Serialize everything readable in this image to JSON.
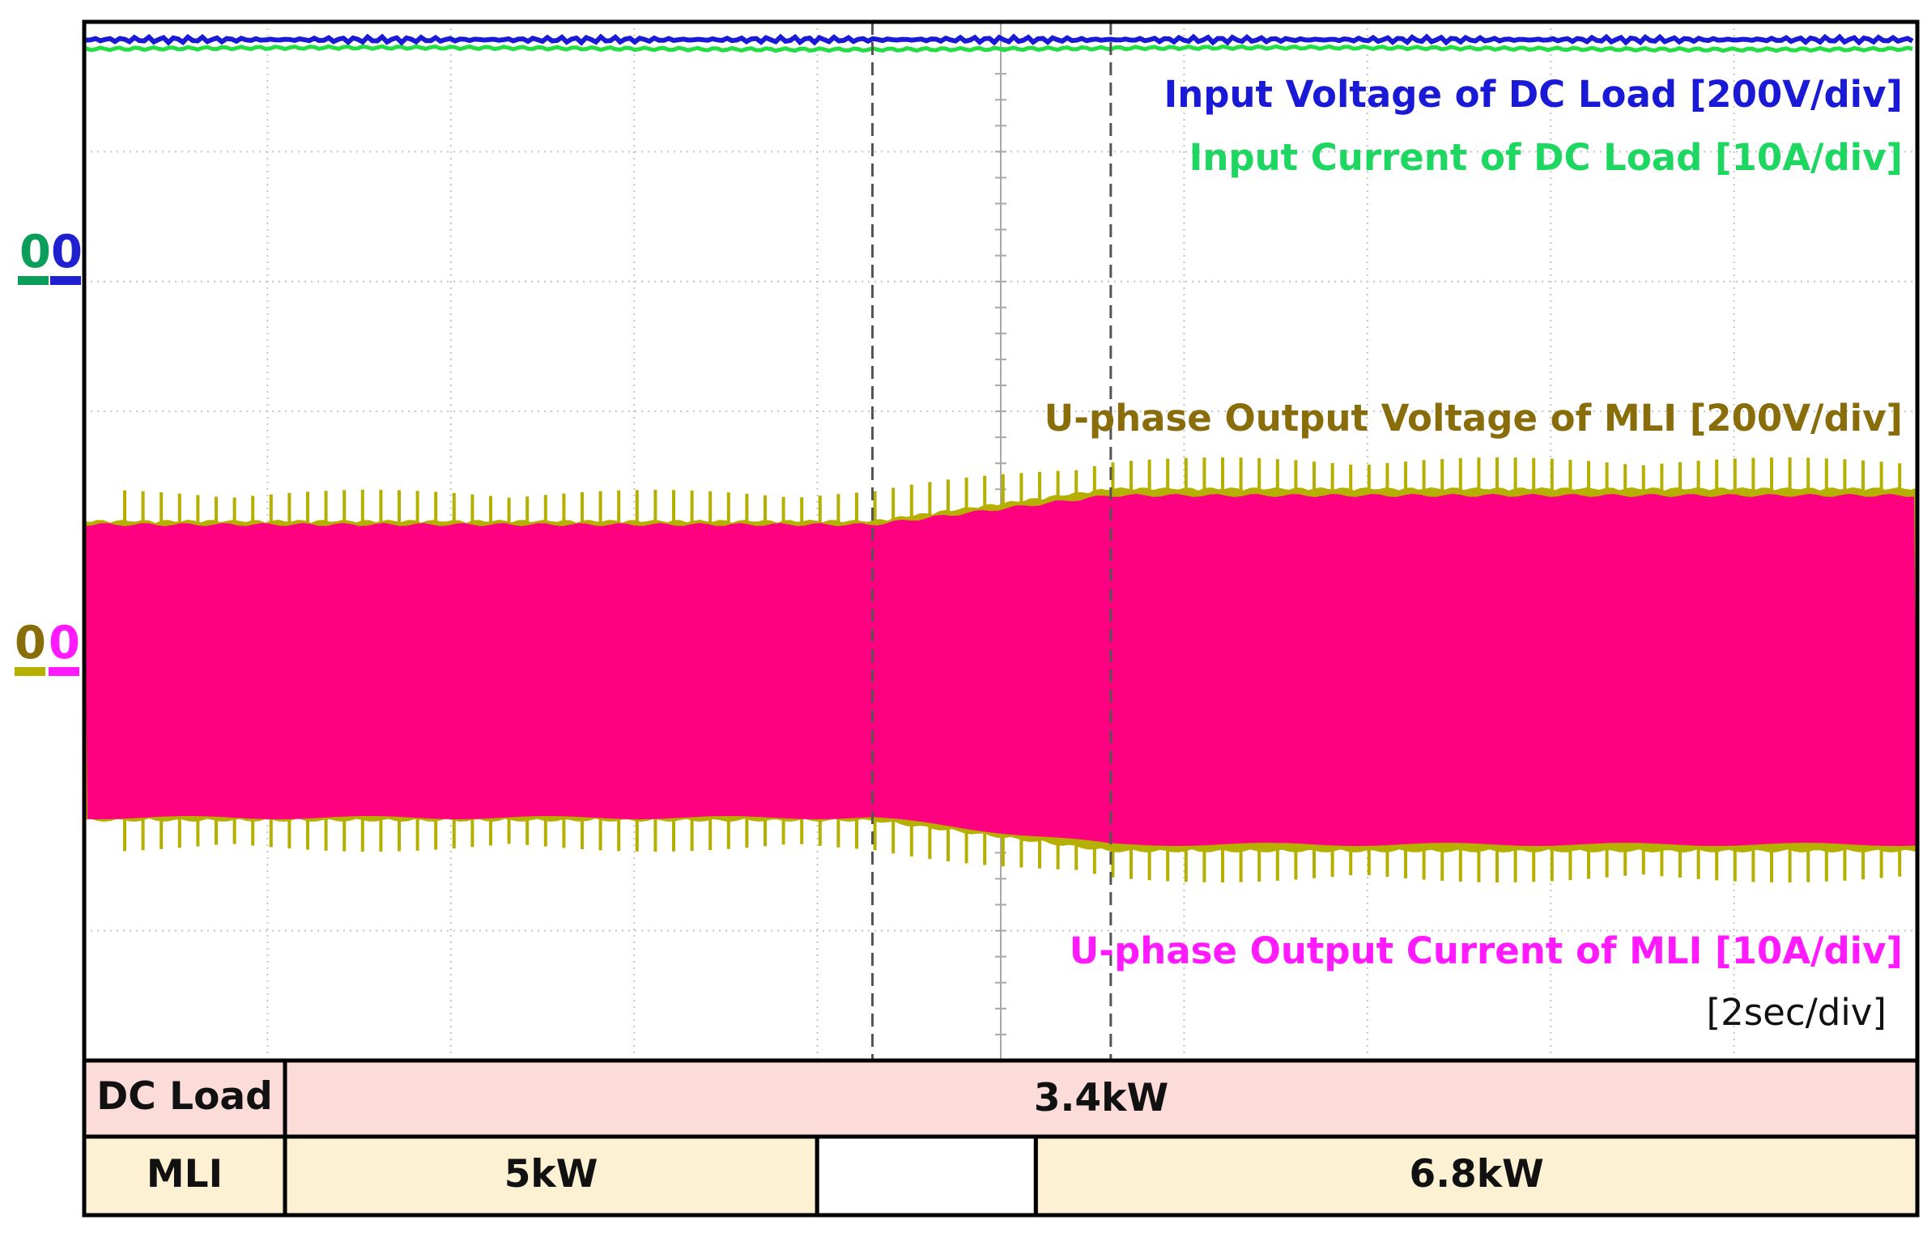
{
  "chart_data": {
    "type": "line",
    "timebase": "[2sec/div]",
    "series": [
      {
        "name": "Input Voltage of DC Load [200V/div]",
        "color": "#1a1ad6"
      },
      {
        "name": "Input Current of DC Load [10A/div]",
        "color": "#1ed760"
      },
      {
        "name": "U-phase Output Voltage of MLI [200V/div]",
        "color": "#8a6d0b",
        "trace_color": "#b5b000"
      },
      {
        "name": "U-phase Output Current of MLI [10A/div]",
        "color": "#ff1aff",
        "trace_color": "#ff0080"
      }
    ],
    "zero_markers": {
      "upper": [
        {
          "label": "0",
          "color": "#0a9e5a"
        },
        {
          "label": "0",
          "color": "#2020d0"
        }
      ],
      "lower": [
        {
          "label": "0",
          "color": "#8a6d0b"
        },
        {
          "label": "0",
          "color": "#ff1aff"
        }
      ]
    },
    "time_markers_div": [
      4.3,
      5.6
    ],
    "grid": true,
    "divisions": {
      "x": 10,
      "y": 8
    },
    "timeline_table": {
      "rows": [
        {
          "label": "DC Load",
          "segments": [
            {
              "text": "3.4kW",
              "from_div": 0,
              "to_div": 10,
              "fill": "#fbdcd9"
            }
          ]
        },
        {
          "label": "MLI",
          "segments": [
            {
              "text": "5kW",
              "from_div": 0,
              "to_div": 3.26,
              "fill": "#fdf1d3"
            },
            {
              "text": "",
              "from_div": 3.26,
              "to_div": 4.6,
              "fill": "#ffffff"
            },
            {
              "text": "6.8kW",
              "from_div": 4.6,
              "to_div": 10,
              "fill": "#fdf1d3"
            }
          ]
        }
      ]
    }
  }
}
